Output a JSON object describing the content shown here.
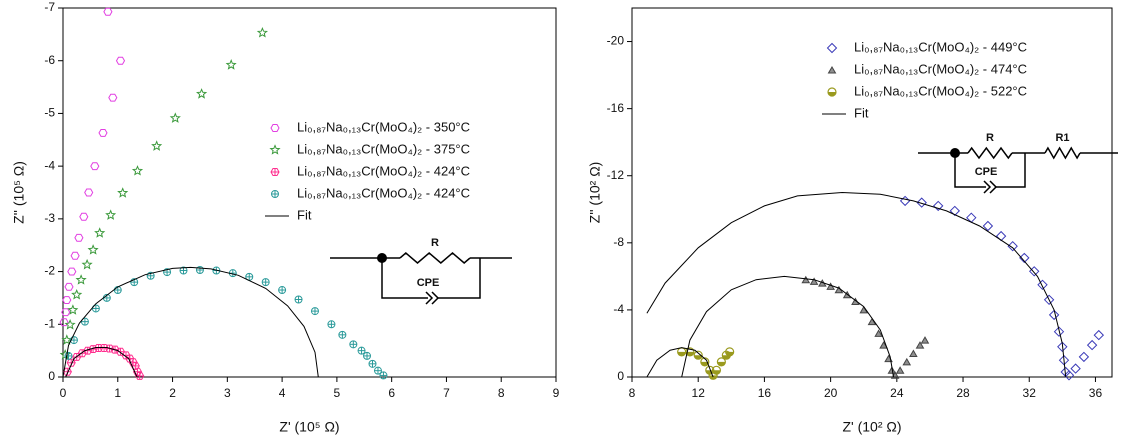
{
  "chart_data": [
    {
      "type": "scatter",
      "xlabel": "Z' (10⁵ Ω)",
      "ylabel": "Z'' (10⁵ Ω)",
      "xlim": [
        0,
        9
      ],
      "xticks": [
        0,
        1,
        2,
        3,
        4,
        5,
        6,
        7,
        8,
        9
      ],
      "ylim": [
        0,
        -7
      ],
      "yticks": [
        0,
        -1,
        -2,
        -3,
        -4,
        -5,
        -6,
        -7
      ],
      "legend": "center",
      "circuit": [
        "R",
        "CPE"
      ],
      "series": [
        {
          "name": "Li₀,₈₇Na₀,₁₃Cr(MoO₄)₂ - 350°C",
          "color": "#e23fe2",
          "mode": "markers",
          "marker": "hexagon",
          "x": [
            0.02,
            0.05,
            0.07,
            0.11,
            0.16,
            0.22,
            0.29,
            0.38,
            0.47,
            0.58,
            0.73,
            0.91,
            1.05,
            0.82
          ],
          "values": [
            -1.04,
            -1.23,
            -1.46,
            -1.71,
            -2.0,
            -2.3,
            -2.64,
            -3.04,
            -3.5,
            -4.0,
            -4.63,
            -5.3,
            -6.0,
            -6.93
          ]
        },
        {
          "name": "Li₀,₈₇Na₀,₁₃Cr(MoO₄)₂ - 375°C",
          "color": "#3c9a3c",
          "mode": "markers",
          "marker": "star",
          "x": [
            0.04,
            0.07,
            0.13,
            0.18,
            0.25,
            0.33,
            0.44,
            0.55,
            0.67,
            0.87,
            1.09,
            1.36,
            1.71,
            2.05,
            2.53,
            3.07,
            3.64
          ],
          "values": [
            -0.42,
            -0.7,
            -0.99,
            -1.27,
            -1.56,
            -1.84,
            -2.13,
            -2.41,
            -2.73,
            -3.07,
            -3.49,
            -3.91,
            -4.38,
            -4.91,
            -5.37,
            -5.92,
            -6.53
          ]
        },
        {
          "name": "Li₀,₈₇Na₀,₁₃Cr(MoO₄)₂ - 424°C",
          "color": "#ff2f8f",
          "mode": "markers",
          "marker": "hexcross",
          "x": [
            0.08,
            0.15,
            0.25,
            0.35,
            0.45,
            0.55,
            0.65,
            0.75,
            0.85,
            0.95,
            1.05,
            1.15,
            1.22,
            1.28,
            1.32,
            1.36,
            1.4
          ],
          "values": [
            -0.1,
            -0.27,
            -0.38,
            -0.45,
            -0.5,
            -0.53,
            -0.55,
            -0.55,
            -0.54,
            -0.52,
            -0.48,
            -0.41,
            -0.35,
            -0.28,
            -0.21,
            -0.1,
            -0.02
          ]
        },
        {
          "name": "Li₀,₈₇Na₀,₁₃Cr(MoO₄)₂ - 424°C",
          "color": "#2a9a9a",
          "mode": "markers",
          "marker": "circlecross",
          "x": [
            0.1,
            0.2,
            0.4,
            0.6,
            0.8,
            1.0,
            1.3,
            1.6,
            1.9,
            2.2,
            2.5,
            2.8,
            3.1,
            3.4,
            3.7,
            4.0,
            4.3,
            4.6,
            4.9,
            5.1,
            5.3,
            5.45,
            5.55,
            5.65,
            5.75,
            5.85
          ],
          "values": [
            -0.4,
            -0.7,
            -1.05,
            -1.3,
            -1.5,
            -1.65,
            -1.8,
            -1.92,
            -1.99,
            -2.02,
            -2.03,
            -2.02,
            -1.97,
            -1.9,
            -1.8,
            -1.65,
            -1.47,
            -1.25,
            -1.0,
            -0.8,
            -0.62,
            -0.5,
            -0.4,
            -0.25,
            -0.12,
            -0.03
          ]
        },
        {
          "name": "Fit",
          "color": "#000000",
          "mode": "lines",
          "x": [
            0,
            0.1,
            0.3,
            0.6,
            1,
            1.5,
            2,
            2.33,
            2.7,
            3.2,
            3.7,
            4.1,
            4.4,
            4.6,
            4.66,
            null,
            0.05,
            0.2,
            0.4,
            0.6,
            0.8,
            1.0,
            1.2,
            1.35
          ],
          "values": [
            0,
            -0.6,
            -1.02,
            -1.39,
            -1.71,
            -1.94,
            -2.06,
            -2.08,
            -2.05,
            -1.93,
            -1.68,
            -1.35,
            -0.96,
            -0.47,
            0,
            null,
            0,
            -0.35,
            -0.5,
            -0.56,
            -0.56,
            -0.5,
            -0.35,
            0
          ]
        }
      ]
    },
    {
      "type": "scatter",
      "xlabel": "Z' (10² Ω)",
      "ylabel": "Z'' (10² Ω)",
      "xlim": [
        8,
        37
      ],
      "xticks": [
        8,
        12,
        16,
        20,
        24,
        28,
        32,
        36
      ],
      "ylim": [
        0,
        -22
      ],
      "yticks": [
        0,
        -4,
        -8,
        -12,
        -16,
        -20
      ],
      "legend": "upper center",
      "circuit": [
        "R",
        "CPE",
        "R1"
      ],
      "series": [
        {
          "name": "Li₀,₈₇Na₀,₁₃Cr(MoO₄)₂ - 449°C",
          "color": "#3a3ab8",
          "mode": "markers",
          "marker": "diamond",
          "x": [
            24.5,
            25.5,
            26.5,
            27.5,
            28.5,
            29.5,
            30.3,
            31,
            31.7,
            32.3,
            32.8,
            33.2,
            33.5,
            33.8,
            34.0,
            34.1,
            34.2,
            34.4,
            34.8,
            35.3,
            35.8,
            36.2
          ],
          "values": [
            -10.5,
            -10.4,
            -10.2,
            -9.9,
            -9.5,
            -9.0,
            -8.4,
            -7.8,
            -7.1,
            -6.3,
            -5.5,
            -4.6,
            -3.7,
            -2.7,
            -1.8,
            -1.0,
            -0.3,
            -0.1,
            -0.5,
            -1.2,
            -1.9,
            -2.5
          ]
        },
        {
          "name": "Li₀,₈₇Na₀,₁₃Cr(MoO₄)₂ - 474°C",
          "color": "#444444",
          "mode": "markers",
          "marker": "triangle",
          "x": [
            18.5,
            19,
            19.5,
            20,
            20.5,
            21,
            21.5,
            22,
            22.5,
            22.9,
            23.2,
            23.5,
            23.7,
            23.9,
            24.2,
            24.6,
            25.0,
            25.4,
            25.7
          ],
          "values": [
            -5.8,
            -5.7,
            -5.6,
            -5.4,
            -5.2,
            -4.9,
            -4.5,
            -4.0,
            -3.3,
            -2.6,
            -1.9,
            -1.1,
            -0.4,
            -0.1,
            -0.4,
            -0.9,
            -1.4,
            -1.9,
            -2.2
          ]
        },
        {
          "name": "Li₀,₈₇Na₀,₁₃Cr(MoO₄)₂ - 522°C",
          "color": "#9a9a1e",
          "mode": "markers",
          "marker": "halfcircle",
          "x": [
            11,
            11.5,
            12,
            12.4,
            12.7,
            12.9,
            13.1,
            13.4,
            13.7,
            13.9
          ],
          "values": [
            -1.5,
            -1.5,
            -1.3,
            -0.9,
            -0.4,
            -0.1,
            -0.4,
            -0.9,
            -1.3,
            -1.5
          ]
        },
        {
          "name": "Fit",
          "color": "#000000",
          "mode": "lines",
          "x": [
            8.9,
            10,
            12,
            14,
            16,
            18,
            20.7,
            23,
            25,
            27,
            29,
            31,
            32.5,
            33.5,
            34.0,
            34.2,
            null,
            11,
            11.5,
            12.5,
            14,
            15.5,
            17.2,
            19,
            20.5,
            22,
            23,
            23.6,
            23.8,
            null,
            8.9,
            9.5,
            10.3,
            11,
            11.8,
            12.5,
            12.9
          ],
          "values": [
            -3.8,
            -5.6,
            -7.7,
            -9.2,
            -10.2,
            -10.8,
            -11.0,
            -10.9,
            -10.5,
            -9.9,
            -9.0,
            -7.7,
            -6.0,
            -4.0,
            -2.0,
            0,
            null,
            0,
            -2.2,
            -3.9,
            -5.2,
            -5.8,
            -6.0,
            -5.8,
            -5.3,
            -4.2,
            -2.8,
            -1.2,
            0,
            null,
            0,
            -1.0,
            -1.6,
            -1.75,
            -1.6,
            -1.0,
            0
          ]
        }
      ]
    }
  ]
}
